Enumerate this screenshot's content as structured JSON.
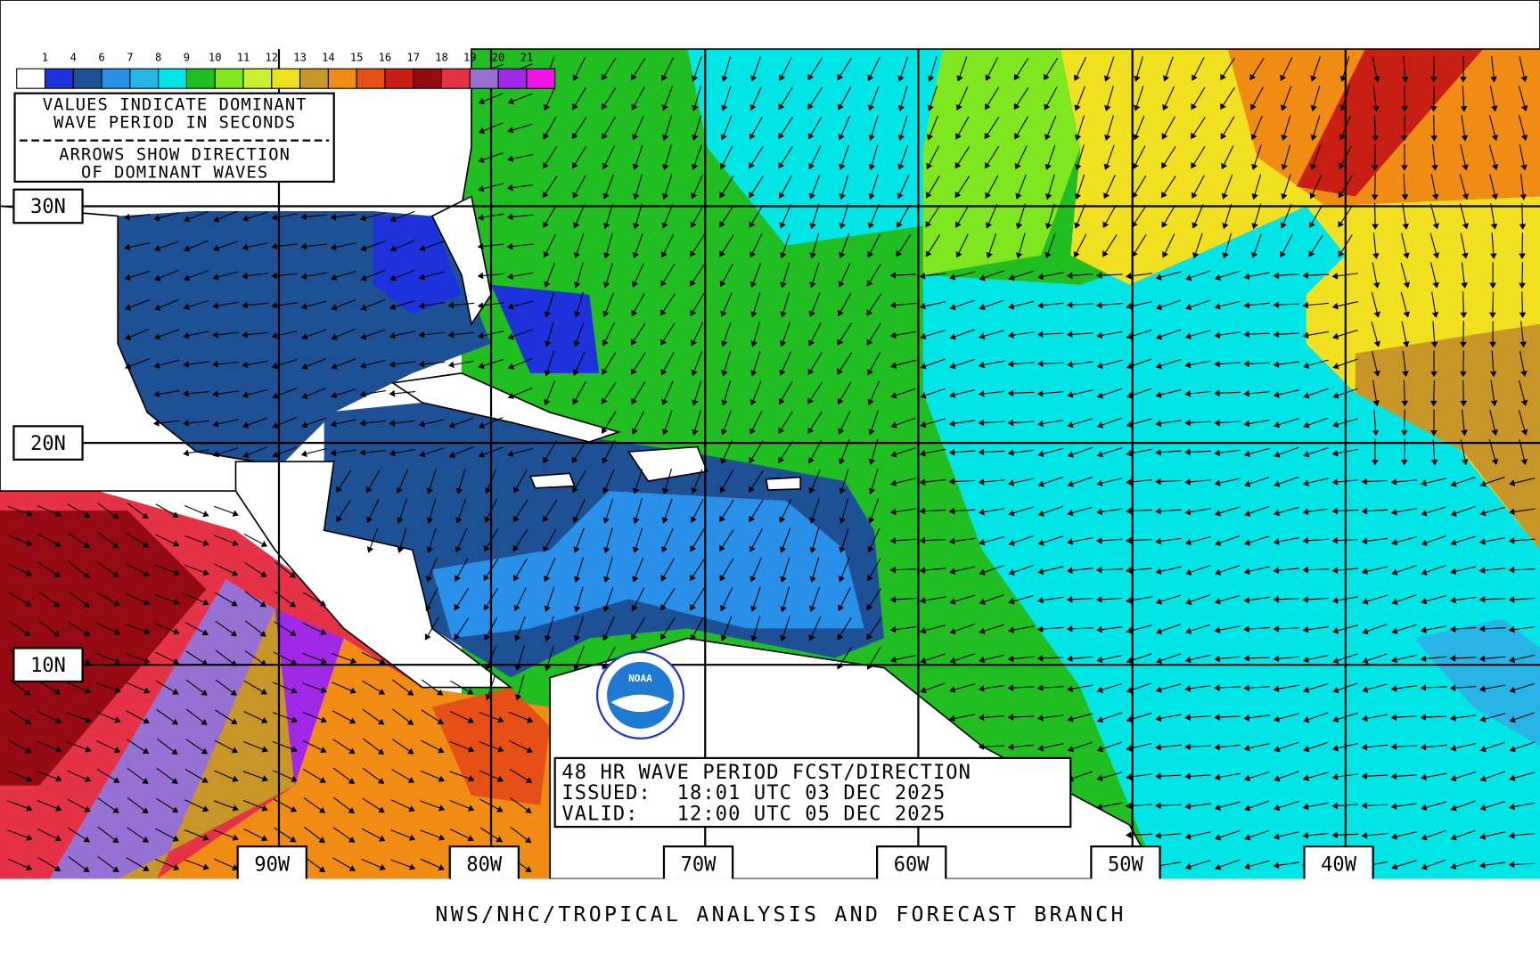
{
  "legend": {
    "labels": [
      "1",
      "4",
      "6",
      "7",
      "8",
      "9",
      "10",
      "11",
      "12",
      "13",
      "14",
      "15",
      "16",
      "17",
      "18",
      "19",
      "20",
      "21"
    ],
    "colors": [
      "#ffffff",
      "#1e32dc",
      "#1e5096",
      "#2890e8",
      "#28b4e6",
      "#00e6e6",
      "#20be20",
      "#80e620",
      "#c8f030",
      "#f0e020",
      "#c89628",
      "#f08c14",
      "#e65014",
      "#c81e14",
      "#960a14",
      "#e63246",
      "#9670d2",
      "#a028e6",
      "#f014e6"
    ]
  },
  "notes": [
    "VALUES INDICATE DOMINANT",
    "WAVE PERIOD IN SECONDS",
    "ARROWS SHOW DIRECTION",
    "OF DOMINANT WAVES"
  ],
  "latitudes": [
    "30N",
    "20N",
    "10N"
  ],
  "longitudes": [
    "90W",
    "80W",
    "70W",
    "60W",
    "50W",
    "40W"
  ],
  "forecast": [
    "48 HR WAVE PERIOD FCST/DIRECTION",
    "ISSUED:  18:01 UTC 03 DEC 2025",
    "VALID:   12:00 UTC 05 DEC 2025"
  ],
  "logo": "NOAA",
  "footer": "NWS/NHC/TROPICAL ANALYSIS AND FORECAST BRANCH"
}
